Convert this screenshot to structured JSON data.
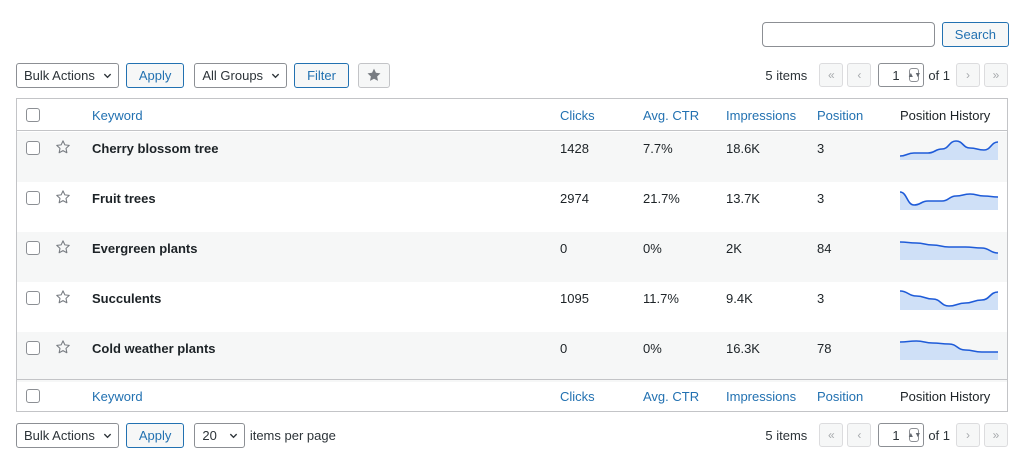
{
  "search": {
    "value": "",
    "button_label": "Search"
  },
  "toolbar_top": {
    "bulk_actions": "Bulk Actions",
    "apply_label": "Apply",
    "groups": "All Groups",
    "filter_label": "Filter"
  },
  "toolbar_bottom": {
    "bulk_actions": "Bulk Actions",
    "apply_label": "Apply",
    "per_page": "20",
    "per_page_label": "items per page"
  },
  "pagination": {
    "items_count": "5 items",
    "first": "«",
    "prev": "‹",
    "current_page": "1",
    "of_label": "of 1",
    "next": "›",
    "last": "»"
  },
  "table": {
    "columns": {
      "keyword": "Keyword",
      "clicks": "Clicks",
      "ctr": "Avg. CTR",
      "impressions": "Impressions",
      "position": "Position",
      "history": "Position History"
    },
    "rows": [
      {
        "keyword": "Cherry blossom tree",
        "clicks": "1428",
        "ctr": "7.7%",
        "impressions": "18.6K",
        "position": "3",
        "history": [
          18,
          15,
          15,
          11,
          3,
          10,
          12,
          4
        ]
      },
      {
        "keyword": "Fruit trees",
        "clicks": "2974",
        "ctr": "21.7%",
        "impressions": "13.7K",
        "position": "3",
        "history": [
          4,
          17,
          13,
          13,
          8,
          6,
          8,
          9
        ]
      },
      {
        "keyword": "Evergreen plants",
        "clicks": "0",
        "ctr": "0%",
        "impressions": "2K",
        "position": "84",
        "history": [
          4,
          5,
          7,
          9,
          9,
          10,
          15
        ]
      },
      {
        "keyword": "Succulents",
        "clicks": "1095",
        "ctr": "11.7%",
        "impressions": "9.4K",
        "position": "3",
        "history": [
          3,
          8,
          11,
          18,
          15,
          12,
          4
        ]
      },
      {
        "keyword": "Cold weather plants",
        "clicks": "0",
        "ctr": "0%",
        "impressions": "16.3K",
        "position": "78",
        "history": [
          4,
          3,
          5,
          6,
          12,
          14,
          14
        ]
      }
    ]
  },
  "colors": {
    "accent": "#2271b1",
    "spark_line": "#1e5bd8",
    "spark_fill": "#cfe0f7"
  },
  "icons": {
    "star": "star-icon",
    "chevron": "chevron-down-icon"
  }
}
